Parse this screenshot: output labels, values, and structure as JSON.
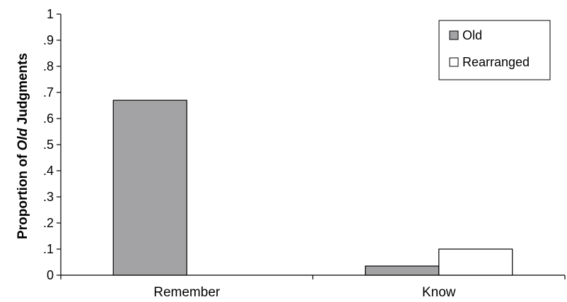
{
  "chart_data": {
    "type": "bar",
    "ylabel": "Proportion of Old Judgments",
    "ylabel_parts": [
      "Proportion of ",
      "Old",
      " Judgments"
    ],
    "ylim": [
      0,
      1
    ],
    "yticks": [
      0,
      0.1,
      0.2,
      0.3,
      0.4,
      0.5,
      0.6,
      0.7,
      0.8,
      0.9,
      1
    ],
    "ytick_labels": [
      "0",
      ".1",
      ".2",
      ".3",
      ".4",
      ".5",
      ".6",
      ".7",
      ".8",
      ".9",
      "1"
    ],
    "categories": [
      "Remember",
      "Know"
    ],
    "series": [
      {
        "name": "Old",
        "color": "#a3a3a5",
        "values": [
          0.67,
          0.035
        ]
      },
      {
        "name": "Rearranged",
        "color": "#ffffff",
        "values": [
          0.0,
          0.1
        ]
      }
    ],
    "legend_position": "top-right",
    "grid": false
  }
}
